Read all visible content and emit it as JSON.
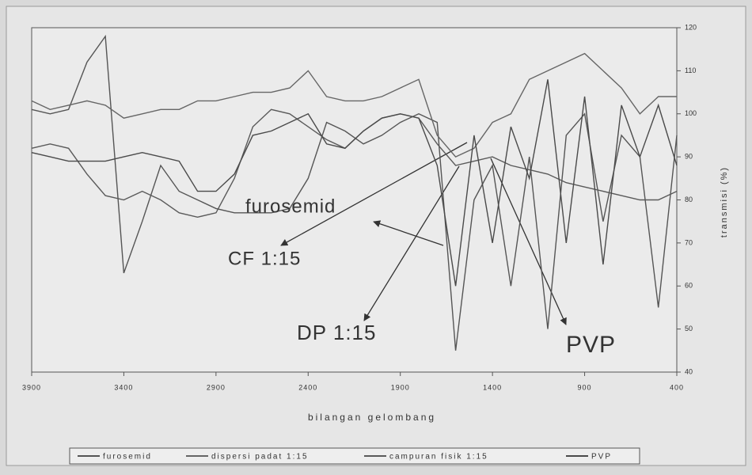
{
  "chart_data": {
    "type": "line",
    "xlabel": "bilangan gelombang",
    "y2label": "transmisi (%)",
    "x": [
      3900,
      3800,
      3700,
      3600,
      3500,
      3400,
      3300,
      3200,
      3100,
      3000,
      2900,
      2800,
      2700,
      2600,
      2500,
      2400,
      2300,
      2200,
      2100,
      2000,
      1900,
      1800,
      1700,
      1600,
      1500,
      1400,
      1300,
      1200,
      1100,
      1000,
      900,
      800,
      700,
      600,
      500,
      400
    ],
    "xlim": [
      3900,
      400
    ],
    "xticks": [
      3900,
      3400,
      2900,
      2400,
      1900,
      1400,
      900,
      400
    ],
    "y2lim": [
      40,
      120
    ],
    "y2ticks": [
      40,
      50,
      60,
      70,
      80,
      90,
      100,
      110,
      120
    ],
    "series": [
      {
        "name": "furosemid",
        "color": "#555555",
        "axis": "y2",
        "values": [
          101,
          100,
          101,
          112,
          118,
          63,
          75,
          88,
          82,
          80,
          78,
          77,
          77,
          77,
          78,
          85,
          98,
          96,
          93,
          95,
          98,
          100,
          98,
          45,
          80,
          88,
          60,
          90,
          50,
          95,
          100,
          75,
          95,
          90,
          55,
          95
        ]
      },
      {
        "name": "dispersi padat 1:15",
        "color": "#666666",
        "axis": "y2",
        "values": [
          103,
          101,
          102,
          103,
          102,
          99,
          100,
          101,
          101,
          103,
          103,
          104,
          105,
          105,
          106,
          110,
          104,
          103,
          103,
          104,
          106,
          108,
          95,
          90,
          92,
          98,
          100,
          108,
          110,
          112,
          114,
          110,
          106,
          100,
          104,
          104
        ]
      },
      {
        "name": "campuran fisik 1:15",
        "color": "#5a5a5a",
        "axis": "y2",
        "values": [
          92,
          93,
          92,
          86,
          81,
          80,
          82,
          80,
          77,
          76,
          77,
          85,
          97,
          101,
          100,
          97,
          94,
          92,
          96,
          99,
          100,
          99,
          93,
          88,
          89,
          90,
          88,
          87,
          86,
          84,
          83,
          82,
          81,
          80,
          80,
          82
        ]
      },
      {
        "name": "PVP",
        "color": "#4a4a4a",
        "axis": "y2",
        "values": [
          91,
          90,
          89,
          89,
          89,
          90,
          91,
          90,
          89,
          82,
          82,
          86,
          95,
          96,
          98,
          100,
          93,
          92,
          96,
          99,
          100,
          99,
          88,
          60,
          95,
          70,
          97,
          85,
          108,
          70,
          104,
          65,
          102,
          90,
          102,
          88
        ]
      }
    ],
    "annotations": [
      "furosemid",
      "CF 1:15",
      "DP 1:15",
      "PVP"
    ]
  }
}
